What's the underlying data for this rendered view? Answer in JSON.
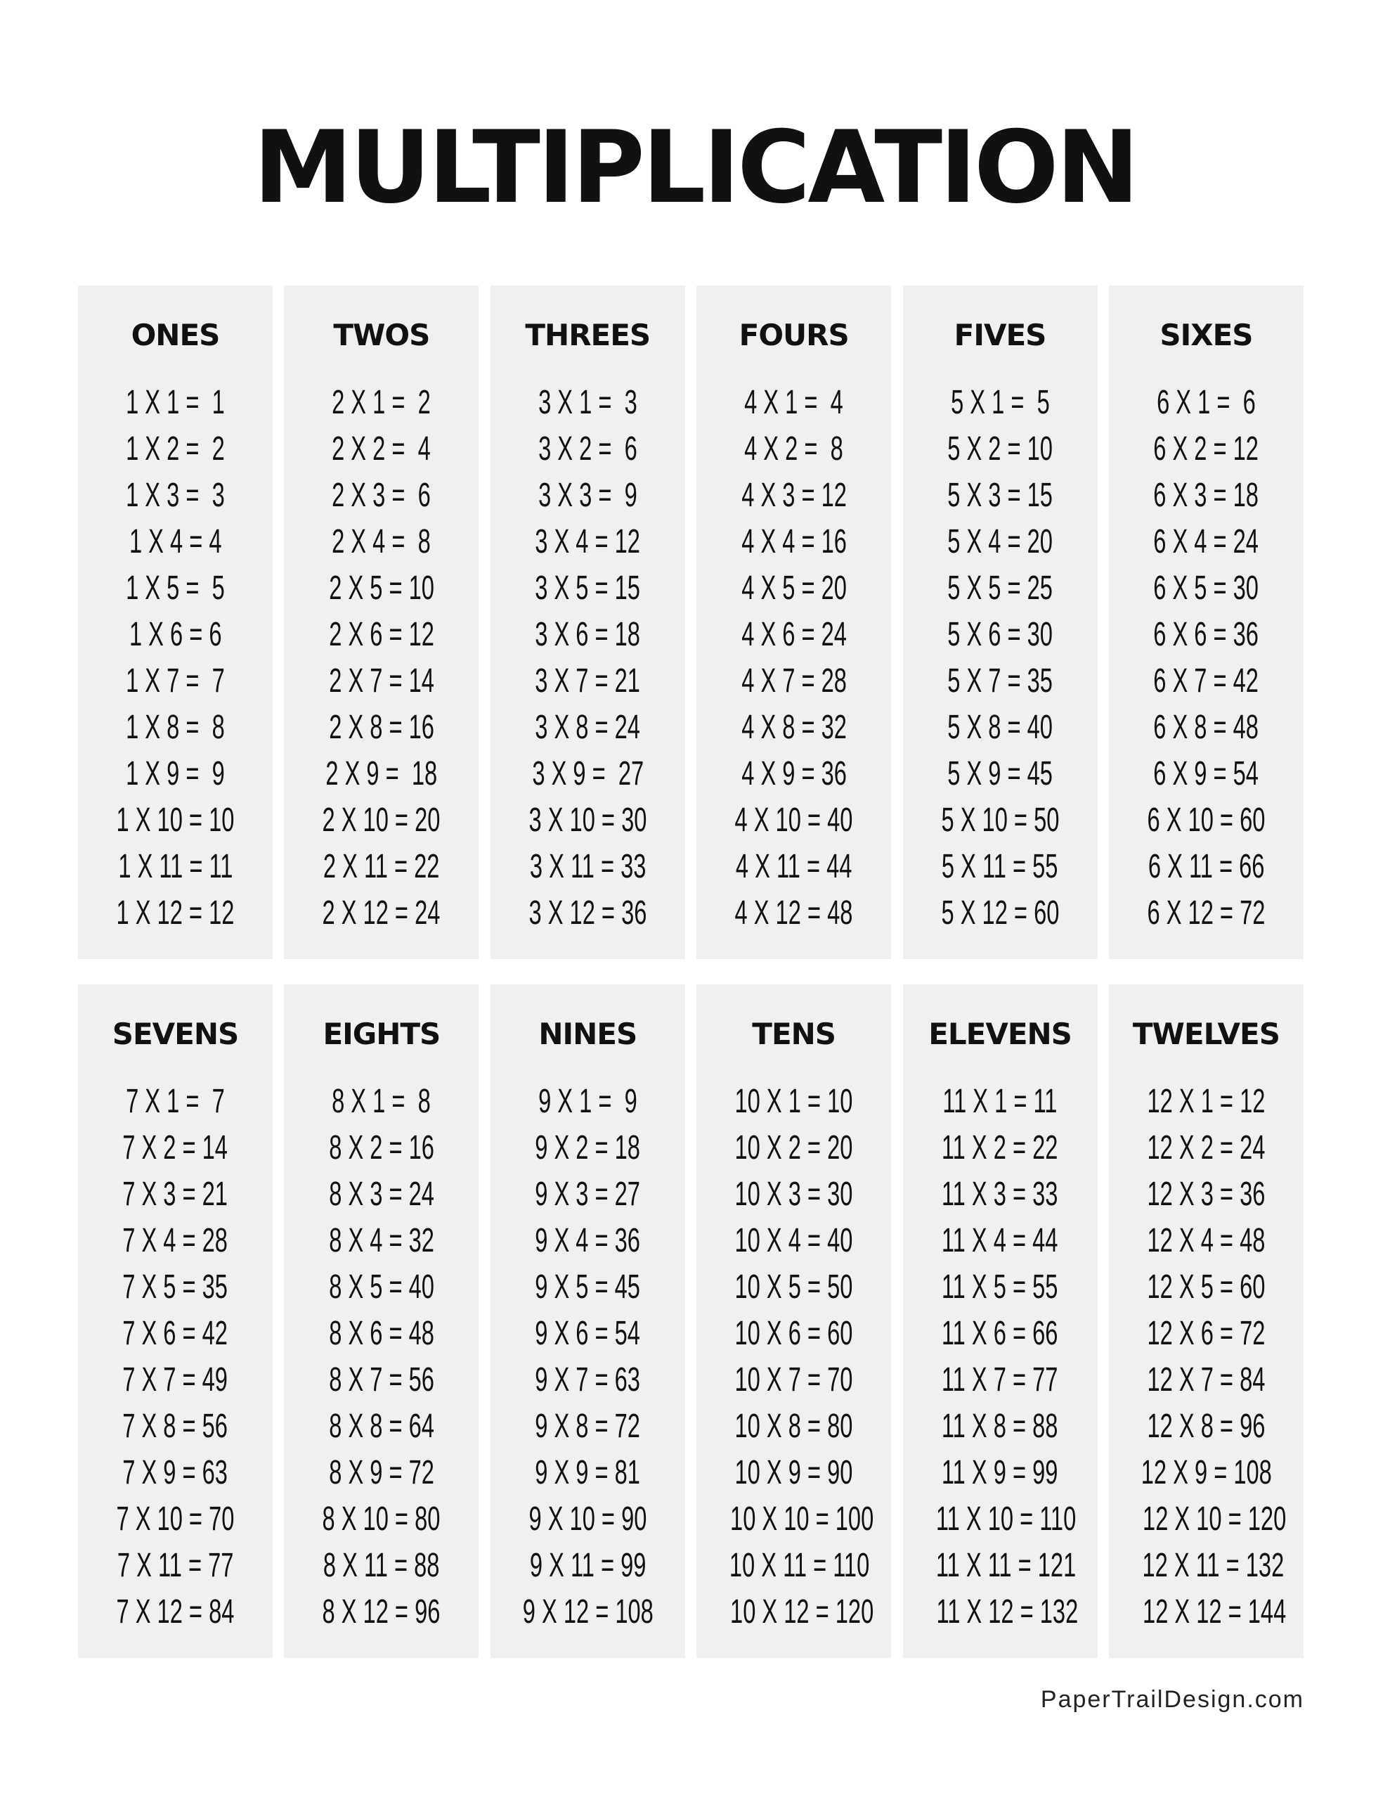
{
  "title": "MULTIPLICATION",
  "footer": "PaperTrailDesign.com",
  "tables": [
    {
      "heading": "ONES",
      "rows": [
        "1 X 1 =  1",
        "1 X 2 =  2",
        "1 X 3 =  3",
        "1 X 4 = 4",
        "1 X 5 =  5",
        "1 X 6 = 6",
        "1 X 7 =  7",
        "1 X 8 =  8",
        "1 X 9 =  9",
        "1 X 10 = 10",
        "1 X 11 = 11",
        "1 X 12 = 12"
      ]
    },
    {
      "heading": "TWOS",
      "rows": [
        "2 X 1 =  2",
        "2 X 2 =  4",
        "2 X 3 =  6",
        "2 X 4 =  8",
        "2 X 5 = 10",
        "2 X 6 = 12",
        "2 X 7 = 14",
        "2 X 8 = 16",
        "2 X 9 =  18",
        "2 X 10 = 20",
        "2 X 11 = 22",
        "2 X 12 = 24"
      ]
    },
    {
      "heading": "THREES",
      "rows": [
        "3 X 1 =  3",
        "3 X 2 =  6",
        "3 X 3 =  9",
        "3 X 4 = 12",
        "3 X 5 = 15",
        "3 X 6 = 18",
        "3 X 7 = 21",
        "3 X 8 = 24",
        "3 X 9 =  27",
        "3 X 10 = 30",
        "3 X 11 = 33",
        "3 X 12 = 36"
      ]
    },
    {
      "heading": "FOURS",
      "rows": [
        "4 X 1 =  4",
        "4 X 2 =  8",
        "4 X 3 = 12",
        "4 X 4 = 16",
        "4 X 5 = 20",
        "4 X 6 = 24",
        "4 X 7 = 28",
        "4 X 8 = 32",
        "4 X 9 = 36",
        "4 X 10 = 40",
        "4 X 11 = 44",
        "4 X 12 = 48"
      ]
    },
    {
      "heading": "FIVES",
      "rows": [
        "5 X 1 =  5",
        "5 X 2 = 10",
        "5 X 3 = 15",
        "5 X 4 = 20",
        "5 X 5 = 25",
        "5 X 6 = 30",
        "5 X 7 = 35",
        "5 X 8 = 40",
        "5 X 9 = 45",
        "5 X 10 = 50",
        "5 X 11 = 55",
        "5 X 12 = 60"
      ]
    },
    {
      "heading": "SIXES",
      "rows": [
        "6 X 1 =  6",
        "6 X 2 = 12",
        "6 X 3 = 18",
        "6 X 4 = 24",
        "6 X 5 = 30",
        "6 X 6 = 36",
        "6 X 7 = 42",
        "6 X 8 = 48",
        "6 X 9 = 54",
        "6 X 10 = 60",
        "6 X 11 = 66",
        "6 X 12 = 72"
      ]
    },
    {
      "heading": "SEVENS",
      "rows": [
        "7 X 1 =  7",
        "7 X 2 = 14",
        "7 X 3 = 21",
        "7 X 4 = 28",
        "7 X 5 = 35",
        "7 X 6 = 42",
        "7 X 7 = 49",
        "7 X 8 = 56",
        "7 X 9 = 63",
        "7 X 10 = 70",
        "7 X 11 = 77",
        "7 X 12 = 84"
      ]
    },
    {
      "heading": "EIGHTS",
      "rows": [
        "8 X 1 =  8",
        "8 X 2 = 16",
        "8 X 3 = 24",
        "8 X 4 = 32",
        "8 X 5 = 40",
        "8 X 6 = 48",
        "8 X 7 = 56",
        "8 X 8 = 64",
        "8 X 9 = 72",
        "8 X 10 = 80",
        "8 X 11 = 88",
        "8 X 12 = 96"
      ]
    },
    {
      "heading": "NINES",
      "rows": [
        "9 X 1 =  9",
        "9 X 2 = 18",
        "9 X 3 = 27",
        "9 X 4 = 36",
        "9 X 5 = 45",
        "9 X 6 = 54",
        "9 X 7 = 63",
        "9 X 8 = 72",
        "9 X 9 = 81",
        "9 X 10 = 90",
        "9 X 11 = 99",
        "9 X 12 = 108"
      ]
    },
    {
      "heading": "TENS",
      "rows": [
        "10 X 1 = 10",
        "10 X 2 = 20",
        "10 X 3 = 30",
        "10 X 4 = 40",
        "10 X 5 = 50",
        "10 X 6 = 60",
        "10 X 7 = 70",
        "10 X 8 = 80",
        "10 X 9 = 90",
        "10 X 10 = 100",
        "10 X 11 = 110",
        "10 X 12 = 120"
      ]
    },
    {
      "heading": "ELEVENS",
      "rows": [
        "11 X 1 = 11",
        "11 X 2 = 22",
        "11 X 3 = 33",
        "11 X 4 = 44",
        "11 X 5 = 55",
        "11 X 6 = 66",
        "11 X 7 = 77",
        "11 X 8 = 88",
        "11 X 9 = 99",
        "11 X 10 = 110",
        "11 X 11 = 121",
        "11 X 12 = 132"
      ]
    },
    {
      "heading": "TWELVES",
      "rows": [
        "12 X 1 = 12",
        "12 X 2 = 24",
        "12 X 3 = 36",
        "12 X 4 = 48",
        "12 X 5 = 60",
        "12 X 6 = 72",
        "12 X 7 = 84",
        "12 X 8 = 96",
        "12 X 9 = 108",
        "12 X 10 = 120",
        "12 X 11 = 132",
        "12 X 12 = 144"
      ]
    }
  ]
}
